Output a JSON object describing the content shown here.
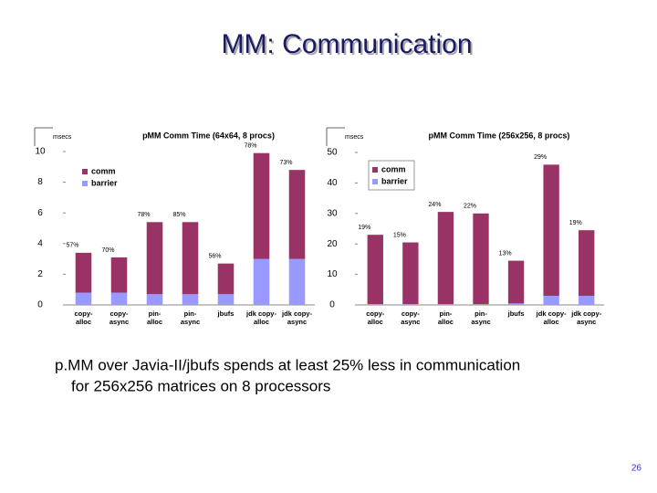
{
  "slide": {
    "title": "MM: Communication",
    "text": [
      "p.MM over Javia-II/jbufs spends at least 25% less in communication",
      "for 256x256 matrices on 8 processors"
    ],
    "page": "26"
  },
  "chart_data": [
    {
      "type": "bar",
      "stacked": true,
      "title": "pMM Comm Time (64x64, 8 procs)",
      "ylabel": "msecs",
      "categories": [
        "copy-\nalloc",
        "copy-\nasync",
        "pin-\nalloc",
        "pin-\nasync",
        "jbufs",
        "jdk copy-\nalloc",
        "jdk copy-\nasync"
      ],
      "series": [
        {
          "name": "comm",
          "color": "#993366",
          "values": [
            2.6,
            2.3,
            4.7,
            4.7,
            2.0,
            6.9,
            5.8
          ]
        },
        {
          "name": "barrier",
          "color": "#9999ff",
          "values": [
            0.8,
            0.8,
            0.7,
            0.7,
            0.7,
            3.0,
            3.0
          ]
        }
      ],
      "percent_labels": [
        "57%",
        "70%",
        "78%",
        "85%",
        "56%",
        "78%",
        "73%"
      ],
      "ylim": [
        0,
        10
      ],
      "yticks": [
        0,
        2,
        4,
        6,
        8,
        10
      ]
    },
    {
      "type": "bar",
      "stacked": true,
      "title": "pMM Comm Time (256x256, 8 procs)",
      "ylabel": "msecs",
      "categories": [
        "copy-\nalloc",
        "copy-\nasync",
        "pin-\nalloc",
        "pin-\nasync",
        "jbufs",
        "jdk copy-\nalloc",
        "jdk copy-\nasync"
      ],
      "series": [
        {
          "name": "comm",
          "color": "#993366",
          "values": [
            22.7,
            20.2,
            30.2,
            29.7,
            14.0,
            43.0,
            21.5
          ]
        },
        {
          "name": "barrier",
          "color": "#9999ff",
          "values": [
            0.3,
            0.3,
            0.3,
            0.3,
            0.5,
            3.0,
            3.0
          ]
        }
      ],
      "percent_labels": [
        "19%",
        "15%",
        "24%",
        "22%",
        "13%",
        "29%",
        "19%"
      ],
      "ylim": [
        0,
        50
      ],
      "yticks": [
        0,
        10,
        20,
        30,
        40,
        50
      ]
    }
  ]
}
